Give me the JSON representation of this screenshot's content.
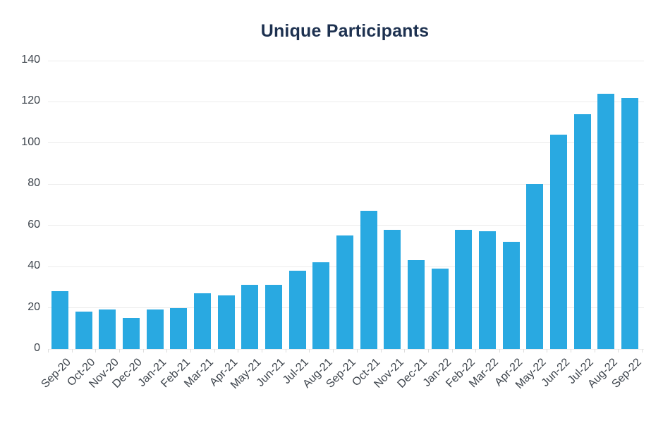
{
  "chart_data": {
    "type": "bar",
    "title": "Unique Participants",
    "categories": [
      "Sep-20",
      "Oct-20",
      "Nov-20",
      "Dec-20",
      "Jan-21",
      "Feb-21",
      "Mar-21",
      "Apr-21",
      "May-21",
      "Jun-21",
      "Jul-21",
      "Aug-21",
      "Sep-21",
      "Oct-21",
      "Nov-21",
      "Dec-21",
      "Jan-22",
      "Feb-22",
      "Mar-22",
      "Apr-22",
      "May-22",
      "Jun-22",
      "Jul-22",
      "Aug-22",
      "Sep-22"
    ],
    "values": [
      28,
      18,
      19,
      15,
      19,
      20,
      27,
      26,
      31,
      31,
      38,
      42,
      55,
      67,
      58,
      43,
      39,
      58,
      57,
      52,
      80,
      104,
      114,
      124,
      122
    ],
    "xlabel": "",
    "ylabel": "",
    "ylim": [
      0,
      140
    ],
    "ytick_step": 20,
    "grid": "horizontal",
    "legend": "none",
    "colors": {
      "bar": "#29a9e1",
      "title": "#1d3150",
      "axis_text": "#3c434b",
      "gridline": "#ececec",
      "tick": "#dddddd"
    }
  }
}
